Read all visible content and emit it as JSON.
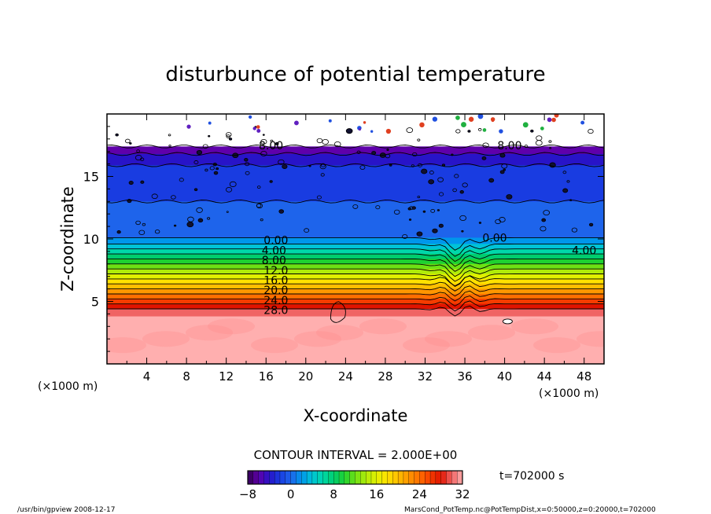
{
  "chart_data": {
    "type": "heatmap",
    "title": "disturbunce of potential temperature",
    "xlabel": "X-coordinate",
    "ylabel": "Z-coordinate",
    "x_unit_left": "(×1000 m)",
    "x_unit_right": "(×1000 m)",
    "xlim": [
      0,
      50
    ],
    "ylim": [
      0,
      20
    ],
    "x_ticks": [
      4,
      8,
      12,
      16,
      20,
      24,
      28,
      32,
      36,
      40,
      44,
      48
    ],
    "y_ticks": [
      5,
      10,
      15
    ],
    "contour_interval_label": "CONTOUR INTERVAL = 2.000E+00",
    "time_label": "t=702000 s",
    "colorbar": {
      "min": -8,
      "max": 32,
      "tick_values": [
        -8,
        0,
        8,
        16,
        24,
        32
      ],
      "tick_labels": [
        "−8",
        "0",
        "8",
        "16",
        "24",
        "32"
      ]
    },
    "layers": [
      {
        "z_top": 20.0,
        "value": -8
      },
      {
        "z_top": 17.4,
        "value": -6
      },
      {
        "z_top": 16.8,
        "value": -4
      },
      {
        "z_top": 15.9,
        "value": -2
      },
      {
        "z_top": 13.0,
        "value": 0
      },
      {
        "z_top": 10.1,
        "value": 2
      },
      {
        "z_top": 9.6,
        "value": 4
      },
      {
        "z_top": 9.2,
        "value": 6
      },
      {
        "z_top": 8.8,
        "value": 8
      },
      {
        "z_top": 8.4,
        "value": 10
      },
      {
        "z_top": 8.0,
        "value": 12
      },
      {
        "z_top": 7.6,
        "value": 14
      },
      {
        "z_top": 7.2,
        "value": 16
      },
      {
        "z_top": 6.8,
        "value": 18
      },
      {
        "z_top": 6.4,
        "value": 20
      },
      {
        "z_top": 6.0,
        "value": 22
      },
      {
        "z_top": 5.6,
        "value": 24
      },
      {
        "z_top": 5.2,
        "value": 26
      },
      {
        "z_top": 4.8,
        "value": 28
      },
      {
        "z_top": 4.4,
        "value": 30
      },
      {
        "z_top": 3.8,
        "value": 32
      }
    ],
    "contour_labels": [
      {
        "text": "8.00",
        "x": 16.5,
        "z": 17.5
      },
      {
        "text": "8.00",
        "x": 40.5,
        "z": 17.5
      },
      {
        "text": "0.00",
        "x": 17.0,
        "z": 9.9
      },
      {
        "text": "0.00",
        "x": 39.0,
        "z": 10.1
      },
      {
        "text": "4.00",
        "x": 16.8,
        "z": 9.1
      },
      {
        "text": "4.00",
        "x": 48.0,
        "z": 9.1
      },
      {
        "text": "8.00",
        "x": 16.8,
        "z": 8.3
      },
      {
        "text": "12.0",
        "x": 17.0,
        "z": 7.5
      },
      {
        "text": "16.0",
        "x": 17.0,
        "z": 6.7
      },
      {
        "text": "20.0",
        "x": 17.0,
        "z": 5.9
      },
      {
        "text": "24.0",
        "x": 17.0,
        "z": 5.1
      },
      {
        "text": "28.0",
        "x": 17.0,
        "z": 4.3
      }
    ]
  },
  "footer": {
    "left": "/usr/bin/gpview   2008-12-17",
    "right": "MarsCond_PotTemp.nc@PotTempDist,x=0:50000,z=0:20000,t=702000"
  }
}
